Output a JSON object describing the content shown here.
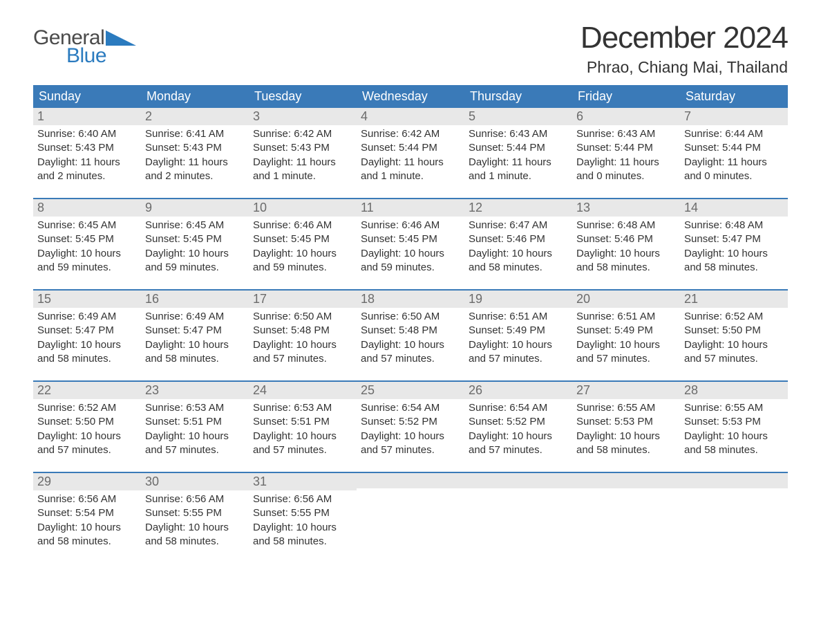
{
  "brand": {
    "general": "General",
    "blue": "Blue",
    "triangle_color": "#2b7bbf"
  },
  "title": {
    "month_year": "December 2024",
    "location": "Phrao, Chiang Mai, Thailand"
  },
  "colors": {
    "header_bg": "#3a7ab8",
    "header_text": "#ffffff",
    "daynum_bg": "#e8e8e8",
    "daynum_text": "#6b6b6b",
    "body_text": "#333333",
    "week_border": "#3a7ab8",
    "background": "#ffffff",
    "logo_general": "#4a4a4a",
    "logo_blue": "#2b7bbf"
  },
  "typography": {
    "month_title_size": 44,
    "location_size": 23,
    "dow_size": 18,
    "daynum_size": 18,
    "dayline_size": 15,
    "logo_size": 30
  },
  "layout": {
    "columns": 7,
    "rows": 5,
    "gap_between_weeks": 18
  },
  "days_of_week": [
    "Sunday",
    "Monday",
    "Tuesday",
    "Wednesday",
    "Thursday",
    "Friday",
    "Saturday"
  ],
  "weeks": [
    [
      {
        "num": "1",
        "sunrise": "Sunrise: 6:40 AM",
        "sunset": "Sunset: 5:43 PM",
        "dl1": "Daylight: 11 hours",
        "dl2": "and 2 minutes."
      },
      {
        "num": "2",
        "sunrise": "Sunrise: 6:41 AM",
        "sunset": "Sunset: 5:43 PM",
        "dl1": "Daylight: 11 hours",
        "dl2": "and 2 minutes."
      },
      {
        "num": "3",
        "sunrise": "Sunrise: 6:42 AM",
        "sunset": "Sunset: 5:43 PM",
        "dl1": "Daylight: 11 hours",
        "dl2": "and 1 minute."
      },
      {
        "num": "4",
        "sunrise": "Sunrise: 6:42 AM",
        "sunset": "Sunset: 5:44 PM",
        "dl1": "Daylight: 11 hours",
        "dl2": "and 1 minute."
      },
      {
        "num": "5",
        "sunrise": "Sunrise: 6:43 AM",
        "sunset": "Sunset: 5:44 PM",
        "dl1": "Daylight: 11 hours",
        "dl2": "and 1 minute."
      },
      {
        "num": "6",
        "sunrise": "Sunrise: 6:43 AM",
        "sunset": "Sunset: 5:44 PM",
        "dl1": "Daylight: 11 hours",
        "dl2": "and 0 minutes."
      },
      {
        "num": "7",
        "sunrise": "Sunrise: 6:44 AM",
        "sunset": "Sunset: 5:44 PM",
        "dl1": "Daylight: 11 hours",
        "dl2": "and 0 minutes."
      }
    ],
    [
      {
        "num": "8",
        "sunrise": "Sunrise: 6:45 AM",
        "sunset": "Sunset: 5:45 PM",
        "dl1": "Daylight: 10 hours",
        "dl2": "and 59 minutes."
      },
      {
        "num": "9",
        "sunrise": "Sunrise: 6:45 AM",
        "sunset": "Sunset: 5:45 PM",
        "dl1": "Daylight: 10 hours",
        "dl2": "and 59 minutes."
      },
      {
        "num": "10",
        "sunrise": "Sunrise: 6:46 AM",
        "sunset": "Sunset: 5:45 PM",
        "dl1": "Daylight: 10 hours",
        "dl2": "and 59 minutes."
      },
      {
        "num": "11",
        "sunrise": "Sunrise: 6:46 AM",
        "sunset": "Sunset: 5:45 PM",
        "dl1": "Daylight: 10 hours",
        "dl2": "and 59 minutes."
      },
      {
        "num": "12",
        "sunrise": "Sunrise: 6:47 AM",
        "sunset": "Sunset: 5:46 PM",
        "dl1": "Daylight: 10 hours",
        "dl2": "and 58 minutes."
      },
      {
        "num": "13",
        "sunrise": "Sunrise: 6:48 AM",
        "sunset": "Sunset: 5:46 PM",
        "dl1": "Daylight: 10 hours",
        "dl2": "and 58 minutes."
      },
      {
        "num": "14",
        "sunrise": "Sunrise: 6:48 AM",
        "sunset": "Sunset: 5:47 PM",
        "dl1": "Daylight: 10 hours",
        "dl2": "and 58 minutes."
      }
    ],
    [
      {
        "num": "15",
        "sunrise": "Sunrise: 6:49 AM",
        "sunset": "Sunset: 5:47 PM",
        "dl1": "Daylight: 10 hours",
        "dl2": "and 58 minutes."
      },
      {
        "num": "16",
        "sunrise": "Sunrise: 6:49 AM",
        "sunset": "Sunset: 5:47 PM",
        "dl1": "Daylight: 10 hours",
        "dl2": "and 58 minutes."
      },
      {
        "num": "17",
        "sunrise": "Sunrise: 6:50 AM",
        "sunset": "Sunset: 5:48 PM",
        "dl1": "Daylight: 10 hours",
        "dl2": "and 57 minutes."
      },
      {
        "num": "18",
        "sunrise": "Sunrise: 6:50 AM",
        "sunset": "Sunset: 5:48 PM",
        "dl1": "Daylight: 10 hours",
        "dl2": "and 57 minutes."
      },
      {
        "num": "19",
        "sunrise": "Sunrise: 6:51 AM",
        "sunset": "Sunset: 5:49 PM",
        "dl1": "Daylight: 10 hours",
        "dl2": "and 57 minutes."
      },
      {
        "num": "20",
        "sunrise": "Sunrise: 6:51 AM",
        "sunset": "Sunset: 5:49 PM",
        "dl1": "Daylight: 10 hours",
        "dl2": "and 57 minutes."
      },
      {
        "num": "21",
        "sunrise": "Sunrise: 6:52 AM",
        "sunset": "Sunset: 5:50 PM",
        "dl1": "Daylight: 10 hours",
        "dl2": "and 57 minutes."
      }
    ],
    [
      {
        "num": "22",
        "sunrise": "Sunrise: 6:52 AM",
        "sunset": "Sunset: 5:50 PM",
        "dl1": "Daylight: 10 hours",
        "dl2": "and 57 minutes."
      },
      {
        "num": "23",
        "sunrise": "Sunrise: 6:53 AM",
        "sunset": "Sunset: 5:51 PM",
        "dl1": "Daylight: 10 hours",
        "dl2": "and 57 minutes."
      },
      {
        "num": "24",
        "sunrise": "Sunrise: 6:53 AM",
        "sunset": "Sunset: 5:51 PM",
        "dl1": "Daylight: 10 hours",
        "dl2": "and 57 minutes."
      },
      {
        "num": "25",
        "sunrise": "Sunrise: 6:54 AM",
        "sunset": "Sunset: 5:52 PM",
        "dl1": "Daylight: 10 hours",
        "dl2": "and 57 minutes."
      },
      {
        "num": "26",
        "sunrise": "Sunrise: 6:54 AM",
        "sunset": "Sunset: 5:52 PM",
        "dl1": "Daylight: 10 hours",
        "dl2": "and 57 minutes."
      },
      {
        "num": "27",
        "sunrise": "Sunrise: 6:55 AM",
        "sunset": "Sunset: 5:53 PM",
        "dl1": "Daylight: 10 hours",
        "dl2": "and 58 minutes."
      },
      {
        "num": "28",
        "sunrise": "Sunrise: 6:55 AM",
        "sunset": "Sunset: 5:53 PM",
        "dl1": "Daylight: 10 hours",
        "dl2": "and 58 minutes."
      }
    ],
    [
      {
        "num": "29",
        "sunrise": "Sunrise: 6:56 AM",
        "sunset": "Sunset: 5:54 PM",
        "dl1": "Daylight: 10 hours",
        "dl2": "and 58 minutes."
      },
      {
        "num": "30",
        "sunrise": "Sunrise: 6:56 AM",
        "sunset": "Sunset: 5:55 PM",
        "dl1": "Daylight: 10 hours",
        "dl2": "and 58 minutes."
      },
      {
        "num": "31",
        "sunrise": "Sunrise: 6:56 AM",
        "sunset": "Sunset: 5:55 PM",
        "dl1": "Daylight: 10 hours",
        "dl2": "and 58 minutes."
      },
      null,
      null,
      null,
      null
    ]
  ]
}
